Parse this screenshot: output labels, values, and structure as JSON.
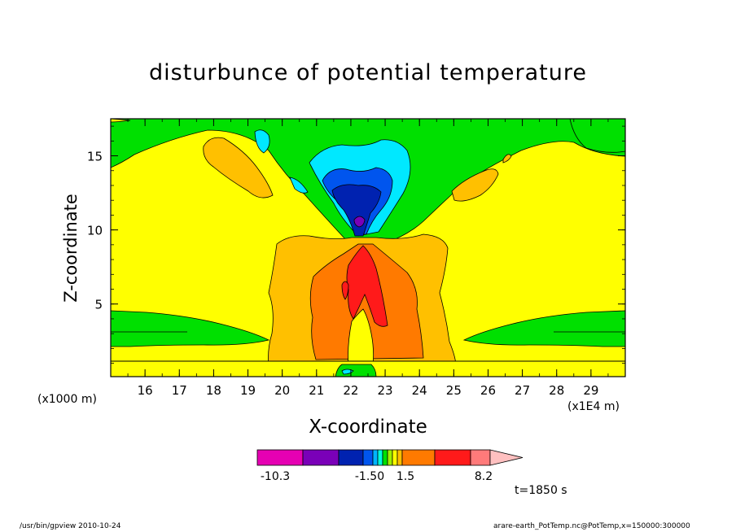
{
  "chart_data": {
    "type": "heatmap",
    "title": "disturbunce of potential temperature",
    "xlabel": "X-coordinate",
    "ylabel": "Z-coordinate",
    "x_unit_left": "(x1000 m)",
    "x_scale_note": "(x1E4 m)",
    "x_ticks": [
      "16",
      "17",
      "18",
      "19",
      "20",
      "21",
      "22",
      "23",
      "24",
      "25",
      "26",
      "27",
      "28",
      "29"
    ],
    "x_tick_values": [
      16,
      17,
      18,
      19,
      20,
      21,
      22,
      23,
      24,
      25,
      26,
      27,
      28,
      29
    ],
    "y_ticks": [
      "5",
      "10",
      "15"
    ],
    "y_tick_values": [
      5,
      10,
      15
    ],
    "xlim": [
      15,
      30
    ],
    "ylim": [
      0.1,
      17.5
    ],
    "time_label": "t=1850 s",
    "colorbar": {
      "labels": [
        "-10.3",
        "-1.50",
        "1.5",
        "8.2"
      ],
      "colors": [
        "#e600b3",
        "#7a00b8",
        "#0022b0",
        "#0055ee",
        "#00b4ff",
        "#00ffdd",
        "#00e000",
        "#a0f000",
        "#ffff00",
        "#ffc000",
        "#ff7a00",
        "#ff1a1a",
        "#ff7a7a",
        "#ffc0c0"
      ],
      "bins": [
        -10.3,
        -6.3,
        -3.8,
        -2.5,
        -1.5,
        -1.0,
        -0.5,
        0,
        0.5,
        1.0,
        1.5,
        3.0,
        5.0,
        8.2
      ]
    }
  },
  "footer": {
    "left": "/usr/bin/gpview  2010-10-24",
    "right": "arare-earth_PotTemp.nc@PotTemp,x=150000:300000"
  },
  "colors": {
    "background_yellow": "#ffff00",
    "green": "#00e000",
    "light_orange": "#ffc000",
    "orange": "#ff7a00",
    "red": "#ff1a1a",
    "cyan": "#00e8ff",
    "blue": "#0022b0",
    "purple": "#7a00b8"
  }
}
